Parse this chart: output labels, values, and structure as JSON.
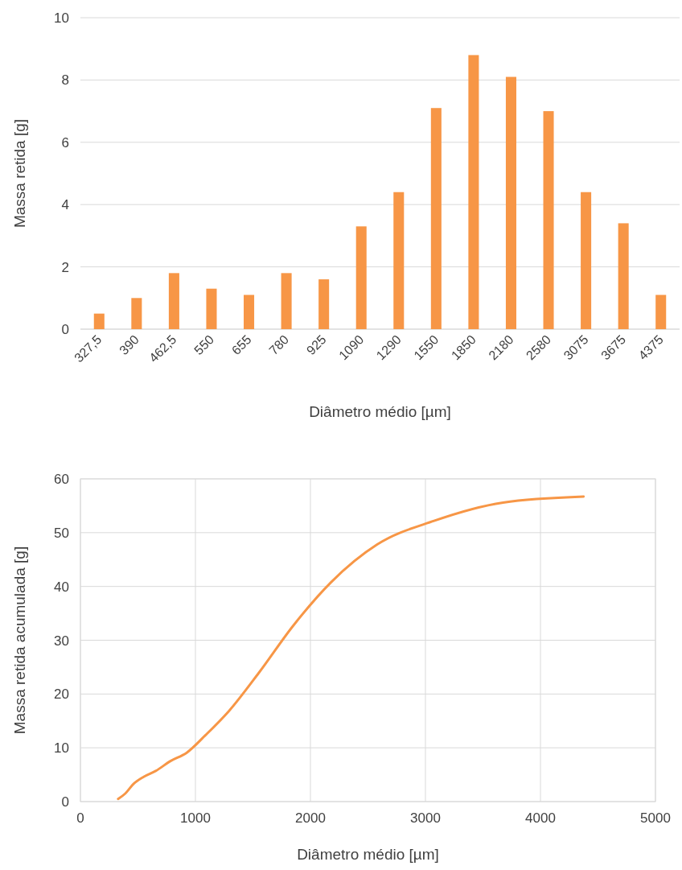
{
  "chart_data": [
    {
      "type": "bar",
      "xlabel": "Diâmetro médio [µm]",
      "ylabel": "Massa retida [g]",
      "categories": [
        "327,5",
        "390",
        "462,5",
        "550",
        "655",
        "780",
        "925",
        "1090",
        "1290",
        "1550",
        "1850",
        "2180",
        "2580",
        "3075",
        "3675",
        "4375"
      ],
      "series": [
        {
          "color": "#f79646",
          "values": [
            0.5,
            1.0,
            1.8,
            1.3,
            1.1,
            1.8,
            1.6,
            3.3,
            4.4,
            7.1,
            8.8,
            8.1,
            7.0,
            4.4,
            3.4,
            1.1
          ]
        }
      ],
      "ylim": [
        0,
        10
      ],
      "yticks": [
        0,
        2,
        4,
        6,
        8,
        10
      ],
      "grid": "y"
    },
    {
      "type": "line",
      "xlabel": "Diâmetro médio [µm]",
      "ylabel": "Massa retida acumulada [g]",
      "x": [
        327.5,
        390,
        462.5,
        550,
        655,
        780,
        925,
        1090,
        1290,
        1550,
        1850,
        2180,
        2580,
        3075,
        3675,
        4375
      ],
      "series": [
        {
          "color": "#f79646",
          "values": [
            0.5,
            1.5,
            3.3,
            4.6,
            5.7,
            7.5,
            9.1,
            12.4,
            16.8,
            23.9,
            32.7,
            40.8,
            47.8,
            52.2,
            55.6,
            56.7
          ]
        }
      ],
      "xlim": [
        0,
        5000
      ],
      "xticks": [
        0,
        1000,
        2000,
        3000,
        4000,
        5000
      ],
      "ylim": [
        0,
        60
      ],
      "yticks": [
        0,
        10,
        20,
        30,
        40,
        50,
        60
      ],
      "grid": true,
      "marker": "none",
      "line_style": "solid"
    }
  ]
}
